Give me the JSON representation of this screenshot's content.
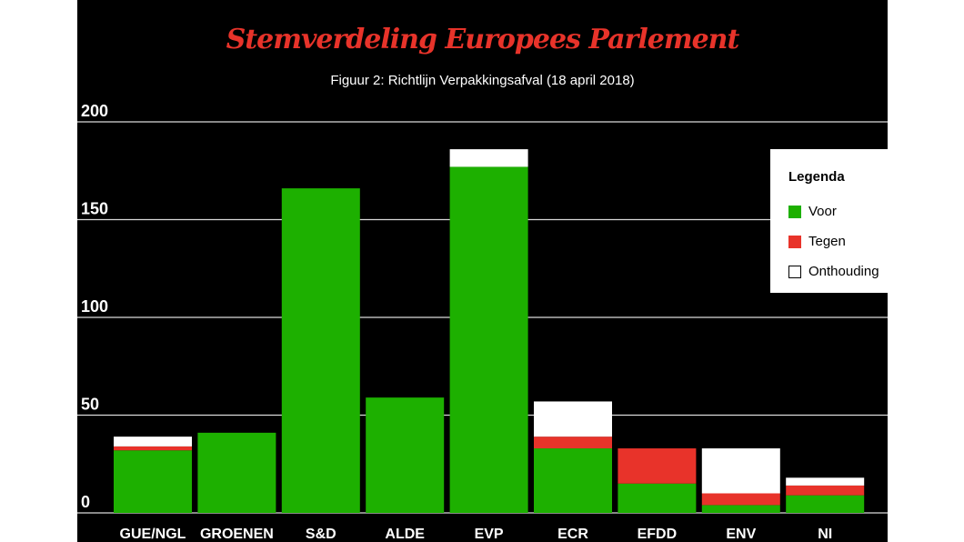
{
  "chart_data": {
    "type": "bar",
    "stacked": true,
    "title": "Stemverdeling Europees Parlement",
    "subtitle": "Figuur 2: Richtlijn Verpakkingsafval (18 april 2018)",
    "categories": [
      "GUE/NGL",
      "GROENEN",
      "S&D",
      "ALDE",
      "EVP",
      "ECR",
      "EFDD",
      "ENV",
      "NI"
    ],
    "series": [
      {
        "name": "Voor",
        "color": "#1db000",
        "values": [
          32,
          41,
          166,
          59,
          177,
          33,
          15,
          4,
          9
        ]
      },
      {
        "name": "Tegen",
        "color": "#e8332a",
        "values": [
          2,
          0,
          0,
          0,
          0,
          6,
          18,
          6,
          5
        ]
      },
      {
        "name": "Onthouding",
        "color": "#ffffff",
        "values": [
          5,
          0,
          0,
          0,
          9,
          18,
          0,
          23,
          4
        ]
      }
    ],
    "ylim": [
      0,
      200
    ],
    "yticks": [
      0,
      50,
      100,
      150,
      200
    ],
    "grid": true,
    "legend": {
      "title": "Legenda",
      "position": "right"
    }
  }
}
